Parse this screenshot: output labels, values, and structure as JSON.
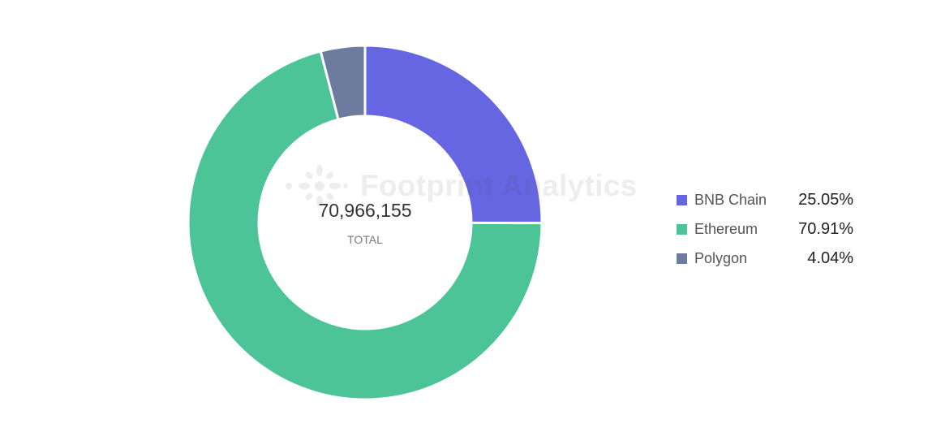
{
  "chart_data": {
    "type": "pie",
    "total": "70,966,155",
    "total_label": "TOTAL",
    "slices": [
      {
        "name": "BNB Chain",
        "percent": 25.05,
        "percent_label": "25.05%",
        "color": "#6665e2"
      },
      {
        "name": "Ethereum",
        "percent": 70.91,
        "percent_label": "70.91%",
        "color": "#4cc497"
      },
      {
        "name": "Polygon",
        "percent": 4.04,
        "percent_label": "4.04%",
        "color": "#6c7b9e"
      }
    ],
    "legend_position": "right"
  },
  "watermark": {
    "text": "Footprint Analytics",
    "icon": "footprint-logo-icon"
  }
}
